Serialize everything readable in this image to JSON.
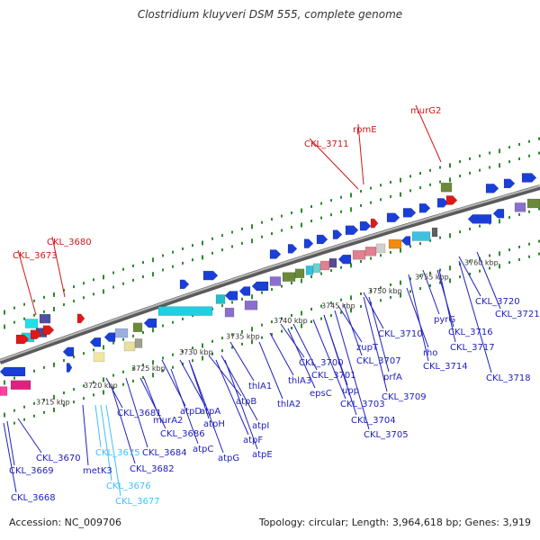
{
  "title": "Clostridium kluyveri DSM 555, complete genome",
  "footer": {
    "accession": "Accession: NC_009706",
    "summary": "Topology: circular; Length: 3,964,618 bp; Genes: 3,919"
  },
  "scale_labels": [
    "3715 kbp",
    "3720 kbp",
    "3725 kbp",
    "3730 kbp",
    "3735 kbp",
    "3740 kbp",
    "3745 kbp",
    "3750 kbp",
    "3755 kbp",
    "3760 kbp"
  ],
  "colors": {
    "label_default": "#2020c0",
    "label_highlight": "#d01818",
    "label_light": "#40c0ff",
    "backbone": "#808080",
    "gene_blue": "#1a3fd8",
    "tick_green": "#2e8b2e"
  },
  "gene_labels": [
    "CKL_3668",
    "CKL_3669",
    "CKL_3670",
    "metK3",
    "CKL_3675",
    "CKL_3676",
    "CKL_3677",
    "CKL_3681",
    "CKL_3682",
    "CKL_3684",
    "CKL_3686",
    "murA2",
    "atpD",
    "atpA",
    "atpC",
    "atpG",
    "atpH",
    "atpB",
    "atpI",
    "atpF",
    "atpE",
    "thlA1",
    "thlA2",
    "thlA3",
    "epsC",
    "CKL_3700",
    "CKL_3701",
    "CKL_3703",
    "CKL_3704",
    "CKL_3705",
    "upp",
    "zupT",
    "CKL_3707",
    "CKL_3709",
    "prfA",
    "CKL_3710",
    "rho",
    "pyrG",
    "CKL_3714",
    "CKL_3716",
    "CKL_3717",
    "CKL_3718",
    "CKL_3720",
    "CKL_3721",
    "CKL_3673",
    "CKL_3680",
    "CKL_3711",
    "rpmE",
    "murG2"
  ]
}
